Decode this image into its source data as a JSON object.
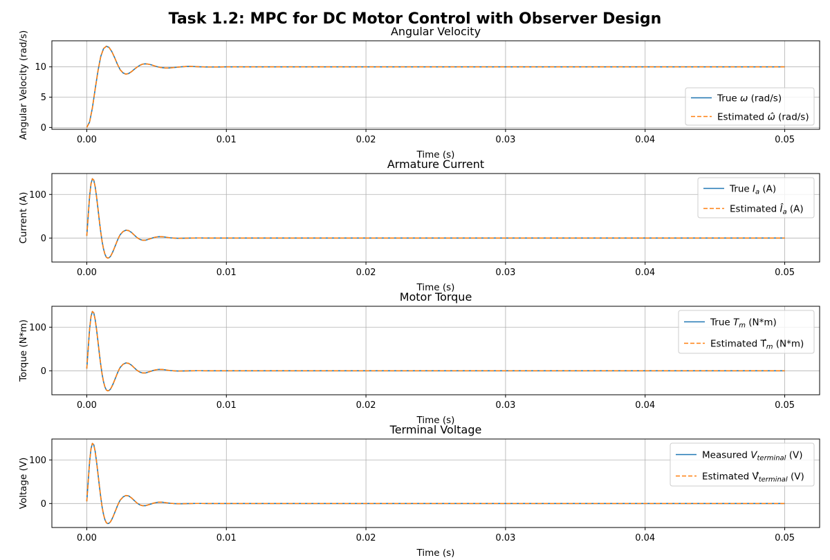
{
  "suptitle": "Task 1.2: MPC for DC Motor Control with Observer Design",
  "colors": {
    "true": "#1f77b4",
    "estimated": "#ff7f0e",
    "grid": "#b0b0b0"
  },
  "chart_data": [
    {
      "type": "line",
      "title": "Angular Velocity",
      "xlabel": "Time (s)",
      "ylabel": "Angular Velocity (rad/s)",
      "xlim": [
        -0.0025,
        0.0525
      ],
      "ylim": [
        -0.3,
        14.3
      ],
      "xticks": [
        0.0,
        0.01,
        0.02,
        0.03,
        0.04,
        0.05
      ],
      "xtick_labels": [
        "0.00",
        "0.01",
        "0.02",
        "0.03",
        "0.04",
        "0.05"
      ],
      "yticks": [
        0,
        5,
        10
      ],
      "ytick_labels": [
        "0",
        "5",
        "10"
      ],
      "grid": true,
      "legend_position": "lower-right",
      "x": [
        0.0,
        0.0002,
        0.0004,
        0.0006,
        0.0008,
        0.001,
        0.0012,
        0.0014,
        0.0016,
        0.0018,
        0.002,
        0.0022,
        0.0024,
        0.0026,
        0.0028,
        0.003,
        0.0032,
        0.0034,
        0.0036,
        0.0038,
        0.004,
        0.0042,
        0.0044,
        0.0046,
        0.0048,
        0.005,
        0.0053,
        0.0056,
        0.0059,
        0.0062,
        0.0065,
        0.0068,
        0.0071,
        0.0074,
        0.0077,
        0.008,
        0.0085,
        0.009,
        0.0095,
        0.01,
        0.012,
        0.015,
        0.02,
        0.03,
        0.04,
        0.05
      ],
      "series": [
        {
          "name": "True ω (rad/s)",
          "style": "solid",
          "values": [
            0.0,
            0.9,
            3.2,
            6.3,
            9.3,
            11.7,
            13.0,
            13.4,
            13.2,
            12.5,
            11.5,
            10.4,
            9.5,
            9.0,
            8.8,
            8.9,
            9.2,
            9.6,
            9.95,
            10.25,
            10.45,
            10.5,
            10.45,
            10.35,
            10.2,
            10.05,
            9.9,
            9.82,
            9.82,
            9.88,
            9.95,
            10.02,
            10.06,
            10.07,
            10.05,
            10.02,
            9.99,
            9.98,
            9.99,
            10.0,
            10.0,
            10.0,
            10.0,
            10.0,
            10.0,
            10.0
          ]
        },
        {
          "name": "Estimated ω̂ (rad/s)",
          "style": "dashed",
          "values": [
            0.0,
            0.9,
            3.2,
            6.3,
            9.3,
            11.7,
            13.0,
            13.4,
            13.2,
            12.5,
            11.5,
            10.4,
            9.5,
            9.0,
            8.8,
            8.9,
            9.2,
            9.6,
            9.95,
            10.25,
            10.45,
            10.5,
            10.45,
            10.35,
            10.2,
            10.05,
            9.9,
            9.82,
            9.82,
            9.88,
            9.95,
            10.02,
            10.06,
            10.07,
            10.05,
            10.02,
            9.99,
            9.98,
            9.99,
            10.0,
            10.0,
            10.0,
            10.0,
            10.0,
            10.0,
            10.0
          ]
        }
      ]
    },
    {
      "type": "line",
      "title": "Armature Current",
      "xlabel": "Time (s)",
      "ylabel": "Current (A)",
      "xlim": [
        -0.0025,
        0.0525
      ],
      "ylim": [
        -55,
        148
      ],
      "xticks": [
        0.0,
        0.01,
        0.02,
        0.03,
        0.04,
        0.05
      ],
      "xtick_labels": [
        "0.00",
        "0.01",
        "0.02",
        "0.03",
        "0.04",
        "0.05"
      ],
      "yticks": [
        0,
        100
      ],
      "ytick_labels": [
        "0",
        "100"
      ],
      "grid": true,
      "legend_position": "upper-right",
      "x": [
        0.0,
        0.0001,
        0.0002,
        0.0003,
        0.0004,
        0.0005,
        0.0006,
        0.0007,
        0.0008,
        0.0009,
        0.001,
        0.0011,
        0.0012,
        0.0013,
        0.0014,
        0.0015,
        0.0016,
        0.0017,
        0.0018,
        0.0019,
        0.002,
        0.0021,
        0.0022,
        0.0023,
        0.0024,
        0.0026,
        0.0028,
        0.003,
        0.0032,
        0.0034,
        0.0036,
        0.0038,
        0.004,
        0.0042,
        0.0044,
        0.0046,
        0.0048,
        0.005,
        0.0052,
        0.0054,
        0.0056,
        0.0058,
        0.006,
        0.0063,
        0.0066,
        0.0069,
        0.0072,
        0.0075,
        0.0078,
        0.0082,
        0.0086,
        0.009,
        0.0095,
        0.01,
        0.012,
        0.015,
        0.02,
        0.03,
        0.04,
        0.05
      ],
      "series": [
        {
          "name": "True I_a (A)",
          "style": "solid",
          "values": [
            5,
            50,
            95,
            124,
            136,
            133,
            118,
            95,
            68,
            40,
            14,
            -8,
            -25,
            -37,
            -44,
            -46,
            -45,
            -42,
            -36,
            -29,
            -21,
            -13,
            -5,
            2,
            8,
            15,
            18,
            17,
            13,
            7,
            1,
            -3,
            -5,
            -5,
            -3,
            -1,
            1,
            2.5,
            3.2,
            3.0,
            2.3,
            1.3,
            0.5,
            -0.2,
            -0.5,
            -0.4,
            -0.2,
            0.0,
            0.1,
            0.1,
            0.05,
            0.0,
            0.0,
            0.0,
            0.0,
            0.0,
            0.0,
            0.0,
            0.0,
            0.0
          ]
        },
        {
          "name": "Estimated Î_a (A)",
          "style": "dashed",
          "values": [
            5,
            50,
            95,
            124,
            136,
            133,
            118,
            95,
            68,
            40,
            14,
            -8,
            -25,
            -37,
            -44,
            -46,
            -45,
            -42,
            -36,
            -29,
            -21,
            -13,
            -5,
            2,
            8,
            15,
            18,
            17,
            13,
            7,
            1,
            -3,
            -5,
            -5,
            -3,
            -1,
            1,
            2.5,
            3.2,
            3.0,
            2.3,
            1.3,
            0.5,
            -0.2,
            -0.5,
            -0.4,
            -0.2,
            0.0,
            0.1,
            0.1,
            0.05,
            0.0,
            0.0,
            0.0,
            0.0,
            0.0,
            0.0,
            0.0,
            0.0,
            0.0
          ]
        }
      ]
    },
    {
      "type": "line",
      "title": "Motor Torque",
      "xlabel": "Time (s)",
      "ylabel": "Torque (N*m)",
      "xlim": [
        -0.0025,
        0.0525
      ],
      "ylim": [
        -55,
        148
      ],
      "xticks": [
        0.0,
        0.01,
        0.02,
        0.03,
        0.04,
        0.05
      ],
      "xtick_labels": [
        "0.00",
        "0.01",
        "0.02",
        "0.03",
        "0.04",
        "0.05"
      ],
      "yticks": [
        0,
        100
      ],
      "ytick_labels": [
        "0",
        "100"
      ],
      "grid": true,
      "legend_position": "upper-right",
      "x": [
        0.0,
        0.0001,
        0.0002,
        0.0003,
        0.0004,
        0.0005,
        0.0006,
        0.0007,
        0.0008,
        0.0009,
        0.001,
        0.0011,
        0.0012,
        0.0013,
        0.0014,
        0.0015,
        0.0016,
        0.0017,
        0.0018,
        0.0019,
        0.002,
        0.0021,
        0.0022,
        0.0023,
        0.0024,
        0.0026,
        0.0028,
        0.003,
        0.0032,
        0.0034,
        0.0036,
        0.0038,
        0.004,
        0.0042,
        0.0044,
        0.0046,
        0.0048,
        0.005,
        0.0052,
        0.0054,
        0.0056,
        0.0058,
        0.006,
        0.0063,
        0.0066,
        0.0069,
        0.0072,
        0.0075,
        0.0078,
        0.0082,
        0.0086,
        0.009,
        0.0095,
        0.01,
        0.012,
        0.015,
        0.02,
        0.03,
        0.04,
        0.05
      ],
      "series": [
        {
          "name": "True T_m (N*m)",
          "style": "solid",
          "values": [
            5,
            50,
            95,
            124,
            136,
            133,
            118,
            95,
            68,
            40,
            14,
            -8,
            -25,
            -37,
            -44,
            -46,
            -45,
            -42,
            -36,
            -29,
            -21,
            -13,
            -5,
            2,
            8,
            15,
            18,
            17,
            13,
            7,
            1,
            -3,
            -5,
            -5,
            -3,
            -1,
            1,
            2.5,
            3.2,
            3.0,
            2.3,
            1.3,
            0.5,
            -0.2,
            -0.5,
            -0.4,
            -0.2,
            0.0,
            0.1,
            0.1,
            0.05,
            0.0,
            0.0,
            0.0,
            0.0,
            0.0,
            0.0,
            0.0,
            0.0,
            0.0
          ]
        },
        {
          "name": "Estimated T̂_m (N*m)",
          "style": "dashed",
          "values": [
            5,
            50,
            95,
            124,
            136,
            133,
            118,
            95,
            68,
            40,
            14,
            -8,
            -25,
            -37,
            -44,
            -46,
            -45,
            -42,
            -36,
            -29,
            -21,
            -13,
            -5,
            2,
            8,
            15,
            18,
            17,
            13,
            7,
            1,
            -3,
            -5,
            -5,
            -3,
            -1,
            1,
            2.5,
            3.2,
            3.0,
            2.3,
            1.3,
            0.5,
            -0.2,
            -0.5,
            -0.4,
            -0.2,
            0.0,
            0.1,
            0.1,
            0.05,
            0.0,
            0.0,
            0.0,
            0.0,
            0.0,
            0.0,
            0.0,
            0.0,
            0.0
          ]
        }
      ]
    },
    {
      "type": "line",
      "title": "Terminal Voltage",
      "xlabel": "Time (s)",
      "ylabel": "Voltage (V)",
      "xlim": [
        -0.0025,
        0.0525
      ],
      "ylim": [
        -55,
        148
      ],
      "xticks": [
        0.0,
        0.01,
        0.02,
        0.03,
        0.04,
        0.05
      ],
      "xtick_labels": [
        "0.00",
        "0.01",
        "0.02",
        "0.03",
        "0.04",
        "0.05"
      ],
      "yticks": [
        0,
        100
      ],
      "ytick_labels": [
        "0",
        "100"
      ],
      "grid": true,
      "legend_position": "upper-right",
      "x": [
        0.0,
        0.0001,
        0.0002,
        0.0003,
        0.0004,
        0.0005,
        0.0006,
        0.0007,
        0.0008,
        0.0009,
        0.001,
        0.0011,
        0.0012,
        0.0013,
        0.0014,
        0.0015,
        0.0016,
        0.0017,
        0.0018,
        0.0019,
        0.002,
        0.0021,
        0.0022,
        0.0023,
        0.0024,
        0.0026,
        0.0028,
        0.003,
        0.0032,
        0.0034,
        0.0036,
        0.0038,
        0.004,
        0.0042,
        0.0044,
        0.0046,
        0.0048,
        0.005,
        0.0052,
        0.0054,
        0.0056,
        0.0058,
        0.006,
        0.0063,
        0.0066,
        0.0069,
        0.0072,
        0.0075,
        0.0078,
        0.0082,
        0.0086,
        0.009,
        0.0095,
        0.01,
        0.012,
        0.015,
        0.02,
        0.03,
        0.04,
        0.05
      ],
      "series": [
        {
          "name": "Measured V_terminal (V)",
          "style": "solid",
          "values": [
            5,
            50,
            95,
            125,
            138,
            135,
            120,
            96,
            69,
            41,
            15,
            -8,
            -25,
            -37,
            -44,
            -46,
            -45,
            -42,
            -36,
            -29,
            -21,
            -13,
            -5,
            2,
            8,
            15,
            18.5,
            17.5,
            13,
            7,
            1,
            -3,
            -5,
            -5,
            -3,
            -1,
            1,
            2.5,
            3.2,
            3.0,
            2.3,
            1.3,
            0.5,
            -0.2,
            -0.5,
            -0.4,
            -0.2,
            0.0,
            0.1,
            0.1,
            0.05,
            0.0,
            0.0,
            0.0,
            0.0,
            0.0,
            0.0,
            0.0,
            0.0,
            0.0
          ]
        },
        {
          "name": "Estimated V̂_terminal (V)",
          "style": "dashed",
          "values": [
            5,
            50,
            95,
            125,
            138,
            135,
            120,
            96,
            69,
            41,
            15,
            -8,
            -25,
            -37,
            -44,
            -46,
            -45,
            -42,
            -36,
            -29,
            -21,
            -13,
            -5,
            2,
            8,
            15,
            18.5,
            17.5,
            13,
            7,
            1,
            -3,
            -5,
            -5,
            -3,
            -1,
            1,
            2.5,
            3.2,
            3.0,
            2.3,
            1.3,
            0.5,
            -0.2,
            -0.5,
            -0.4,
            -0.2,
            0.0,
            0.1,
            0.1,
            0.05,
            0.0,
            0.0,
            0.0,
            0.0,
            0.0,
            0.0,
            0.0,
            0.0,
            0.0
          ]
        }
      ]
    }
  ]
}
